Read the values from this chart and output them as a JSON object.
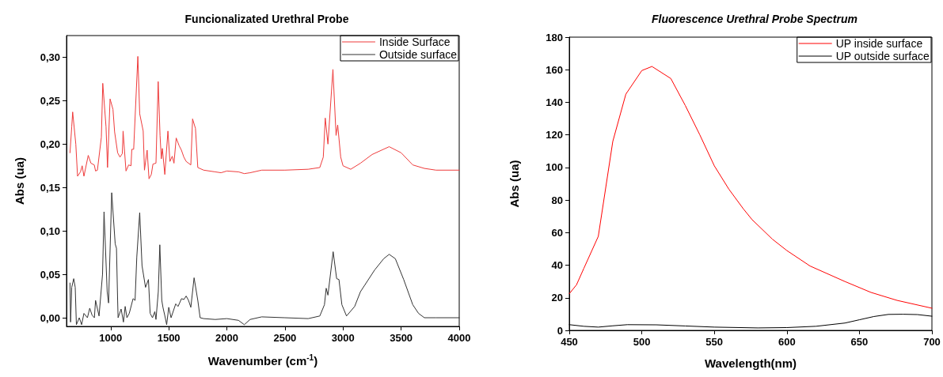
{
  "chart_data": [
    {
      "type": "line",
      "title": "Funcionalizated Urethral Probe",
      "xlabel": "Wavenumber (cm$^{-1}$)",
      "ylabel": "Abs (ua)",
      "xlim": [
        620,
        4000
      ],
      "xticks": [
        1000,
        1500,
        2000,
        2500,
        3000,
        3500,
        4000
      ],
      "ylim": [
        -0.01,
        0.325
      ],
      "yticks": [
        {
          "value": 0,
          "label": "0,00"
        },
        {
          "value": 0.05,
          "label": "0,05"
        },
        {
          "value": 0.1,
          "label": "0,10"
        },
        {
          "value": 0.15,
          "label": "0,15"
        },
        {
          "value": 0.2,
          "label": "0,20"
        },
        {
          "value": 0.25,
          "label": "0,25"
        },
        {
          "value": 0.3,
          "label": "0,30"
        }
      ],
      "grid": false,
      "legend": "top right",
      "marker": "none",
      "line_style": "solid",
      "series": [
        {
          "name": "Inside Surface",
          "color": "#ee3b3b",
          "x": [
            650,
            665,
            673,
            700,
            715,
            740,
            755,
            770,
            807,
            830,
            859,
            870,
            886,
            920,
            932,
            960,
            973,
            995,
            1020,
            1034,
            1060,
            1080,
            1100,
            1107,
            1132,
            1155,
            1175,
            1182,
            1198,
            1234,
            1250,
            1280,
            1291,
            1314,
            1330,
            1350,
            1364,
            1390,
            1409,
            1425,
            1436,
            1445,
            1466,
            1493,
            1510,
            1530,
            1545,
            1564,
            1590,
            1609,
            1630,
            1650,
            1670,
            1690,
            1705,
            1730,
            1750,
            1800,
            1900,
            1950,
            2000,
            2100,
            2150,
            2200,
            2300,
            2500,
            2700,
            2800,
            2830,
            2847,
            2870,
            2913,
            2940,
            2954,
            2980,
            3000,
            3066,
            3150,
            3250,
            3397,
            3500,
            3600,
            3700,
            3800,
            4000
          ],
          "values": [
            0.19,
            0.22,
            0.237,
            0.2,
            0.163,
            0.168,
            0.175,
            0.163,
            0.187,
            0.178,
            0.176,
            0.169,
            0.17,
            0.208,
            0.27,
            0.22,
            0.173,
            0.252,
            0.24,
            0.214,
            0.19,
            0.185,
            0.189,
            0.215,
            0.169,
            0.176,
            0.175,
            0.194,
            0.194,
            0.301,
            0.235,
            0.215,
            0.17,
            0.193,
            0.16,
            0.165,
            0.177,
            0.178,
            0.272,
            0.21,
            0.183,
            0.195,
            0.165,
            0.215,
            0.18,
            0.186,
            0.178,
            0.207,
            0.198,
            0.193,
            0.185,
            0.18,
            0.178,
            0.176,
            0.229,
            0.218,
            0.173,
            0.17,
            0.168,
            0.167,
            0.169,
            0.168,
            0.166,
            0.167,
            0.17,
            0.17,
            0.171,
            0.173,
            0.185,
            0.23,
            0.2,
            0.286,
            0.21,
            0.222,
            0.185,
            0.175,
            0.171,
            0.178,
            0.188,
            0.197,
            0.19,
            0.176,
            0.172,
            0.17,
            0.17
          ]
        },
        {
          "name": "Outside surface",
          "color": "#333333",
          "x": [
            650,
            655,
            665,
            682,
            695,
            705,
            730,
            750,
            770,
            800,
            820,
            840,
            860,
            870,
            900,
            930,
            943,
            970,
            982,
            1009,
            1039,
            1050,
            1060,
            1064,
            1090,
            1110,
            1125,
            1140,
            1160,
            1193,
            1210,
            1225,
            1250,
            1270,
            1300,
            1325,
            1340,
            1360,
            1380,
            1390,
            1410,
            1423,
            1440,
            1450,
            1470,
            1482,
            1500,
            1520,
            1560,
            1580,
            1610,
            1630,
            1650,
            1670,
            1690,
            1718,
            1750,
            1770,
            1800,
            1900,
            2000,
            2100,
            2150,
            2200,
            2300,
            2500,
            2700,
            2800,
            2840,
            2855,
            2870,
            2915,
            2945,
            2965,
            2990,
            3030,
            3100,
            3150,
            3272,
            3350,
            3397,
            3450,
            3522,
            3600,
            3650,
            3700,
            3800,
            4000
          ],
          "values": [
            0.04,
            -0.005,
            0.035,
            0.045,
            0.035,
            -0.008,
            0.0,
            -0.008,
            0.005,
            0.0,
            0.011,
            0.003,
            0.0,
            0.02,
            0.002,
            0.05,
            0.122,
            0.03,
            0.017,
            0.144,
            0.085,
            0.08,
            0.02,
            0.0,
            0.01,
            -0.005,
            0.013,
            0.0,
            0.005,
            0.022,
            0.02,
            0.07,
            0.121,
            0.06,
            0.035,
            0.044,
            0.005,
            0.0,
            0.007,
            -0.002,
            0.03,
            0.084,
            0.02,
            0.012,
            0.0,
            -0.008,
            0.012,
            0.0,
            0.016,
            0.013,
            0.022,
            0.021,
            0.025,
            0.02,
            0.012,
            0.046,
            0.02,
            0.0,
            -0.001,
            -0.002,
            -0.001,
            -0.003,
            -0.008,
            -0.002,
            0.001,
            0.0,
            -0.001,
            0.002,
            0.015,
            0.034,
            0.026,
            0.076,
            0.045,
            0.044,
            0.015,
            0.002,
            0.013,
            0.03,
            0.055,
            0.068,
            0.073,
            0.068,
            0.044,
            0.015,
            0.005,
            0.0,
            0.0,
            0.0
          ]
        }
      ]
    },
    {
      "type": "line",
      "title": "Fluorescence Urethral Probe Spectrum",
      "xlabel": "Wavelength(nm)",
      "ylabel": "Abs (ua)",
      "xlim": [
        450,
        700
      ],
      "xticks": [
        450,
        500,
        550,
        600,
        650,
        700
      ],
      "ylim": [
        0,
        180
      ],
      "yticks": [
        0,
        20,
        40,
        60,
        80,
        100,
        120,
        140,
        160,
        180
      ],
      "grid": false,
      "legend": "top right",
      "marker": "none",
      "line_style": "solid",
      "series": [
        {
          "name": "UP inside surface",
          "color": "#ff0000",
          "x": [
            450,
            455,
            460,
            470,
            480,
            489,
            500,
            507,
            520,
            530,
            540,
            550,
            560,
            570,
            576,
            590,
            600,
            616,
            640,
            658,
            676,
            700
          ],
          "values": [
            22.5,
            28,
            38,
            57.7,
            116,
            145,
            159.5,
            162,
            154.6,
            138,
            120,
            101,
            86.7,
            74.6,
            68,
            56,
            49,
            39.5,
            30,
            23.3,
            18.4,
            13.6
          ]
        },
        {
          "name": "UP outside surface",
          "color": "#000000",
          "x": [
            450,
            460,
            470,
            480,
            490,
            510,
            530,
            550,
            580,
            600,
            620,
            640,
            650,
            660,
            670,
            680,
            690,
            700
          ],
          "values": [
            3.5,
            2.5,
            2,
            2.8,
            3.5,
            3.4,
            2.7,
            2,
            1.5,
            1.7,
            2.5,
            4.5,
            6.5,
            8.5,
            9.8,
            9.9,
            9.7,
            8.7
          ]
        }
      ]
    }
  ]
}
